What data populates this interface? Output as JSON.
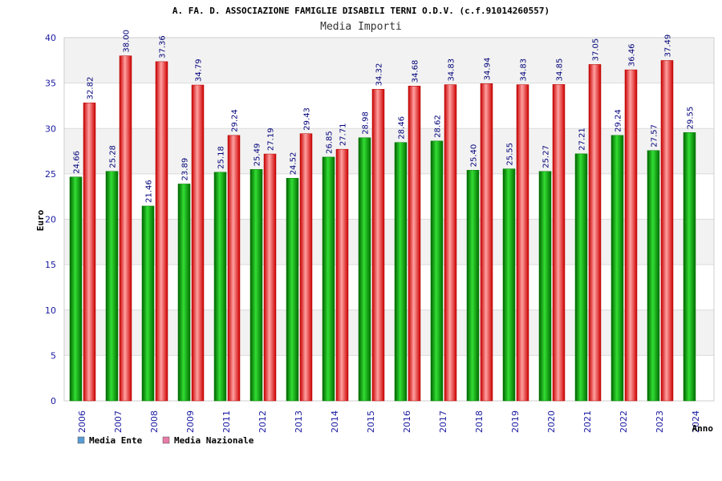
{
  "chart_data": {
    "type": "bar",
    "title": "A. FA. D. ASSOCIAZIONE FAMIGLIE DISABILI TERNI O.D.V. (c.f.91014260557)",
    "subtitle": "Media Importi",
    "xlabel": "Anno",
    "ylabel": "Euro",
    "ylim": [
      0,
      40
    ],
    "yticks": [
      0,
      5,
      10,
      15,
      20,
      25,
      30,
      35,
      40
    ],
    "categories": [
      "2006",
      "2007",
      "2008",
      "2009",
      "2011",
      "2012",
      "2013",
      "2014",
      "2015",
      "2016",
      "2017",
      "2018",
      "2019",
      "2020",
      "2021",
      "2022",
      "2023",
      "2024"
    ],
    "series": [
      {
        "name": "Media Ente",
        "color": "#00a000",
        "values": [
          24.66,
          25.28,
          21.46,
          23.89,
          25.18,
          25.49,
          24.52,
          26.85,
          28.98,
          28.46,
          28.62,
          25.4,
          25.55,
          25.27,
          27.21,
          29.24,
          27.57,
          29.55
        ],
        "labels": [
          "24.66",
          "25.28",
          "21.46",
          "23.89",
          "25.18",
          "25.49",
          "24.52",
          "26.85",
          "28.98",
          "28.46",
          "28.62",
          "25.40",
          "25.55",
          "25.27",
          "27.21",
          "29.24",
          "27.57",
          "29.55"
        ]
      },
      {
        "name": "Media Nazionale",
        "color": "#e01010",
        "values": [
          32.82,
          38.0,
          37.36,
          34.79,
          29.24,
          27.19,
          29.43,
          27.71,
          34.32,
          34.68,
          34.83,
          34.94,
          34.83,
          34.85,
          37.05,
          36.46,
          37.49,
          null
        ],
        "labels": [
          "32.82",
          "38.00",
          "37.36",
          "34.79",
          "29.24",
          "27.19",
          "29.43",
          "27.71",
          "34.32",
          "34.68",
          "34.83",
          "34.94",
          "34.83",
          "34.85",
          "37.05",
          "36.46",
          "37.49",
          ""
        ]
      }
    ],
    "legend": [
      {
        "label": "Media Ente",
        "color": "#5b9bd5"
      },
      {
        "label": "Media Nazionale",
        "color": "#e87aa8"
      }
    ],
    "legend_position": "bottom-left",
    "grid": true
  }
}
